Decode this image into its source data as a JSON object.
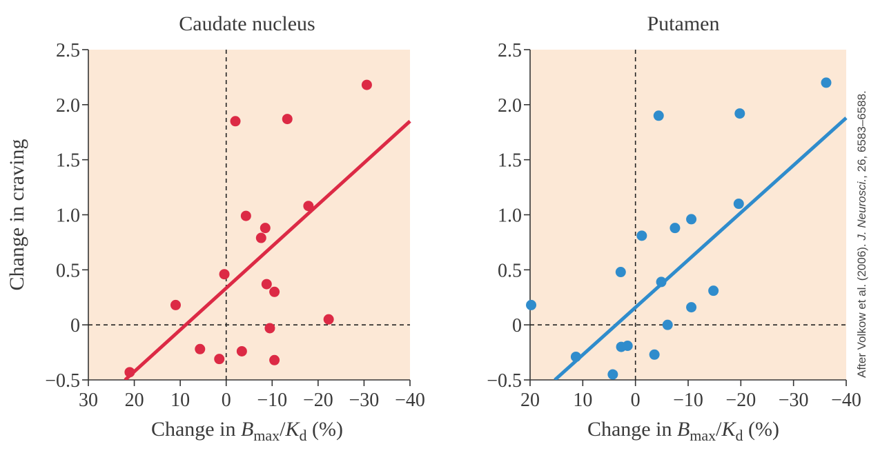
{
  "credit": {
    "prefix": "After Volkow et al. (2006). ",
    "journal": "J. Neurosci.",
    "suffix": ", 26, 6583–6588."
  },
  "style": {
    "plot_background": "#fce8d6",
    "caudate_color": "#dc2a45",
    "putamen_color": "#2f8ccc"
  },
  "chart_data": [
    {
      "type": "scatter",
      "title": "Caudate nucleus",
      "xlabel": {
        "prefix": "Change in ",
        "var1": "B",
        "sub1": "max",
        "sep": "/",
        "var2": "K",
        "sub2": "d",
        "suffix": " (%)"
      },
      "ylabel": "Change in craving",
      "xlim": [
        30,
        -40
      ],
      "ylim": [
        -0.5,
        2.5
      ],
      "x_reversed": true,
      "x_ticks": [
        30,
        20,
        10,
        0,
        -10,
        -20,
        -30,
        -40
      ],
      "x_tick_labels": [
        "30",
        "20",
        "10",
        "0",
        "−10",
        "−20",
        "−30",
        "−40"
      ],
      "y_ticks": [
        -0.5,
        0,
        0.5,
        1.0,
        1.5,
        2.0,
        2.5
      ],
      "y_tick_labels": [
        "−0.5",
        "0",
        "0.5",
        "1.0",
        "1.5",
        "2.0",
        "2.5"
      ],
      "reference_lines": {
        "x": 0,
        "y": 0,
        "style": "dashed"
      },
      "grid": false,
      "series": [
        {
          "color": "#dc2a45",
          "points": [
            {
              "x": 21,
              "y": -0.43
            },
            {
              "x": 11,
              "y": 0.18
            },
            {
              "x": 5.7,
              "y": -0.22
            },
            {
              "x": 1.5,
              "y": -0.31
            },
            {
              "x": 0.4,
              "y": 0.46
            },
            {
              "x": -2,
              "y": 1.85
            },
            {
              "x": -3.4,
              "y": -0.24
            },
            {
              "x": -4.3,
              "y": 0.99
            },
            {
              "x": -7.6,
              "y": 0.79
            },
            {
              "x": -8.5,
              "y": 0.88
            },
            {
              "x": -8.8,
              "y": 0.37
            },
            {
              "x": -9.5,
              "y": -0.03
            },
            {
              "x": -10.5,
              "y": 0.3
            },
            {
              "x": -10.5,
              "y": -0.32
            },
            {
              "x": -13.3,
              "y": 1.87
            },
            {
              "x": -17.9,
              "y": 1.08
            },
            {
              "x": -22.3,
              "y": 0.05
            },
            {
              "x": -30.6,
              "y": 2.18
            }
          ],
          "trendline": {
            "x": [
              22,
              -40
            ],
            "y": [
              -0.5,
              1.85
            ]
          }
        }
      ]
    },
    {
      "type": "scatter",
      "title": "Putamen",
      "xlabel": {
        "prefix": "Change in ",
        "var1": "B",
        "sub1": "max",
        "sep": "/",
        "var2": "K",
        "sub2": "d",
        "suffix": " (%)"
      },
      "ylabel": "",
      "xlim": [
        20,
        -40
      ],
      "ylim": [
        -0.5,
        2.5
      ],
      "x_reversed": true,
      "x_ticks": [
        20,
        10,
        0,
        -10,
        -20,
        -30,
        -40
      ],
      "x_tick_labels": [
        "20",
        "10",
        "0",
        "−10",
        "−20",
        "−30",
        "−40"
      ],
      "y_ticks": [
        -0.5,
        0,
        0.5,
        1.0,
        1.5,
        2.0,
        2.5
      ],
      "y_tick_labels": [
        "−0.5",
        "0",
        "0.5",
        "1.0",
        "1.5",
        "2.0",
        "2.5"
      ],
      "reference_lines": {
        "x": 0,
        "y": 0,
        "style": "dashed"
      },
      "grid": false,
      "series": [
        {
          "color": "#2f8ccc",
          "points": [
            {
              "x": 19.8,
              "y": 0.18
            },
            {
              "x": 11.3,
              "y": -0.29
            },
            {
              "x": 4.3,
              "y": -0.45
            },
            {
              "x": 2.8,
              "y": 0.48
            },
            {
              "x": 2.7,
              "y": -0.2
            },
            {
              "x": 1.5,
              "y": -0.19
            },
            {
              "x": -1.2,
              "y": 0.81
            },
            {
              "x": -3.6,
              "y": -0.27
            },
            {
              "x": -4.4,
              "y": 1.9
            },
            {
              "x": -4.9,
              "y": 0.39
            },
            {
              "x": -6.1,
              "y": 0.0
            },
            {
              "x": -7.5,
              "y": 0.88
            },
            {
              "x": -10.6,
              "y": 0.96
            },
            {
              "x": -10.6,
              "y": 0.16
            },
            {
              "x": -14.8,
              "y": 0.31
            },
            {
              "x": -19.6,
              "y": 1.1
            },
            {
              "x": -19.8,
              "y": 1.92
            },
            {
              "x": -36.2,
              "y": 2.2
            }
          ],
          "trendline": {
            "x": [
              15.3,
              -40
            ],
            "y": [
              -0.5,
              1.88
            ]
          }
        }
      ]
    }
  ]
}
